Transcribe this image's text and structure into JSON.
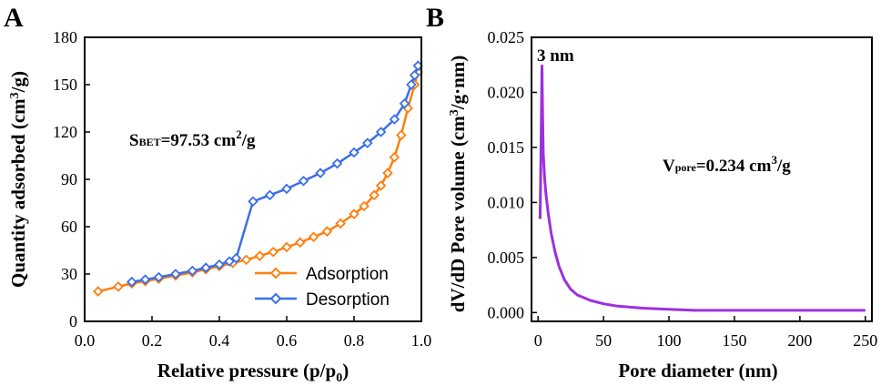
{
  "panels": {
    "A": {
      "letter": "A",
      "ylabel_pre": "Quantity adsorbed (cm",
      "ylabel_sup": "3",
      "ylabel_post": "/g)",
      "xlabel_pre": "Relative pressure (p/p",
      "xlabel_sub": "0",
      "xlabel_post": ")",
      "annotation": {
        "s": "S",
        "sub": "BET",
        "value": "=97.53 cm",
        "sup": "2",
        "unit": "/g"
      },
      "legend": [
        "Adsorption",
        "Desorption"
      ]
    },
    "B": {
      "letter": "B",
      "ylabel_pre": "dV/dD Pore volume (cm",
      "ylabel_sup": "3",
      "ylabel_post": "/g·nm)",
      "xlabel": "Pore diameter (nm)",
      "peak_label": "3 nm",
      "annotation": {
        "v": "V",
        "sub": "pore",
        "value": "=0.234 cm",
        "sup": "3",
        "unit": "/g"
      }
    }
  },
  "chart_data": [
    {
      "type": "line",
      "xlim": [
        0,
        1.0
      ],
      "ylim": [
        0,
        180
      ],
      "xticks": [
        "0.0",
        "0.2",
        "0.4",
        "0.6",
        "0.8",
        "1.0"
      ],
      "yticks": [
        "0",
        "30",
        "60",
        "90",
        "120",
        "150",
        "180"
      ],
      "grid": false,
      "legend_position": "bottom-right",
      "series": [
        {
          "name": "Adsorption",
          "color": "#ff7f0e",
          "marker": "diamond",
          "x": [
            0.04,
            0.1,
            0.14,
            0.18,
            0.22,
            0.27,
            0.32,
            0.36,
            0.4,
            0.44,
            0.48,
            0.52,
            0.56,
            0.6,
            0.64,
            0.68,
            0.72,
            0.76,
            0.8,
            0.83,
            0.86,
            0.88,
            0.9,
            0.92,
            0.94,
            0.96,
            0.98,
            0.99
          ],
          "y": [
            19,
            22,
            24,
            25.5,
            27,
            29,
            31,
            33,
            35,
            37,
            39,
            41.5,
            44,
            47,
            50,
            53.5,
            57,
            62,
            68,
            73,
            80,
            86,
            94,
            104,
            118,
            135,
            150,
            158
          ]
        },
        {
          "name": "Desorption",
          "color": "#3a6fe8",
          "marker": "diamond",
          "x": [
            0.14,
            0.18,
            0.22,
            0.27,
            0.32,
            0.36,
            0.4,
            0.43,
            0.45,
            0.5,
            0.55,
            0.6,
            0.65,
            0.7,
            0.75,
            0.8,
            0.84,
            0.88,
            0.92,
            0.95,
            0.97,
            0.98,
            0.99
          ],
          "y": [
            25,
            26.5,
            28,
            30,
            32,
            34,
            36,
            38,
            40,
            76,
            80,
            84,
            89,
            94,
            100,
            107,
            113,
            120,
            128,
            138,
            150,
            156,
            162
          ]
        }
      ]
    },
    {
      "type": "line",
      "xlim": [
        -5,
        255
      ],
      "ylim": [
        -0.0008,
        0.025
      ],
      "xticks": [
        "0",
        "50",
        "100",
        "150",
        "200",
        "250"
      ],
      "yticks": [
        "0.000",
        "0.005",
        "0.010",
        "0.015",
        "0.020",
        "0.025"
      ],
      "grid": false,
      "series": [
        {
          "color": "#9b30e0",
          "x": [
            1.5,
            2,
            2.5,
            3,
            3.5,
            4,
            5,
            6,
            8,
            10,
            13,
            16,
            20,
            25,
            30,
            40,
            50,
            60,
            80,
            100,
            120,
            150,
            200,
            250
          ],
          "y": [
            0.0085,
            0.0125,
            0.0175,
            0.0224,
            0.018,
            0.0145,
            0.0122,
            0.0108,
            0.0088,
            0.0072,
            0.0055,
            0.0042,
            0.003,
            0.0021,
            0.0016,
            0.0011,
            0.0008,
            0.0006,
            0.0004,
            0.0003,
            0.0002,
            0.0002,
            0.0002,
            0.0002
          ]
        }
      ]
    }
  ]
}
